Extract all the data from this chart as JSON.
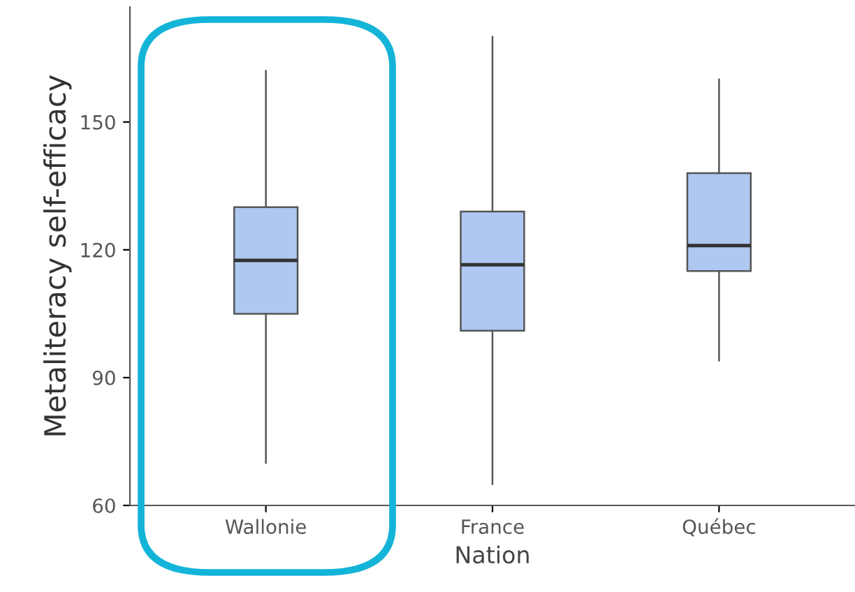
{
  "chart_data": {
    "type": "box",
    "xlabel": "Nation",
    "ylabel": "Metaliteracy self-efficacy",
    "categories": [
      "Wallonie",
      "France",
      "Québec"
    ],
    "color": "#aec8f2",
    "boxes": [
      {
        "low": 70,
        "q1": 105,
        "median": 117.5,
        "q3": 130,
        "high": 162
      },
      {
        "low": 65,
        "q1": 101,
        "median": 116.5,
        "q3": 129,
        "high": 170
      },
      {
        "low": 94,
        "q1": 115,
        "median": 121,
        "q3": 138,
        "high": 160
      }
    ],
    "ylim": [
      60,
      177
    ],
    "yticks": [
      60,
      90,
      120,
      150
    ],
    "grid": false
  }
}
